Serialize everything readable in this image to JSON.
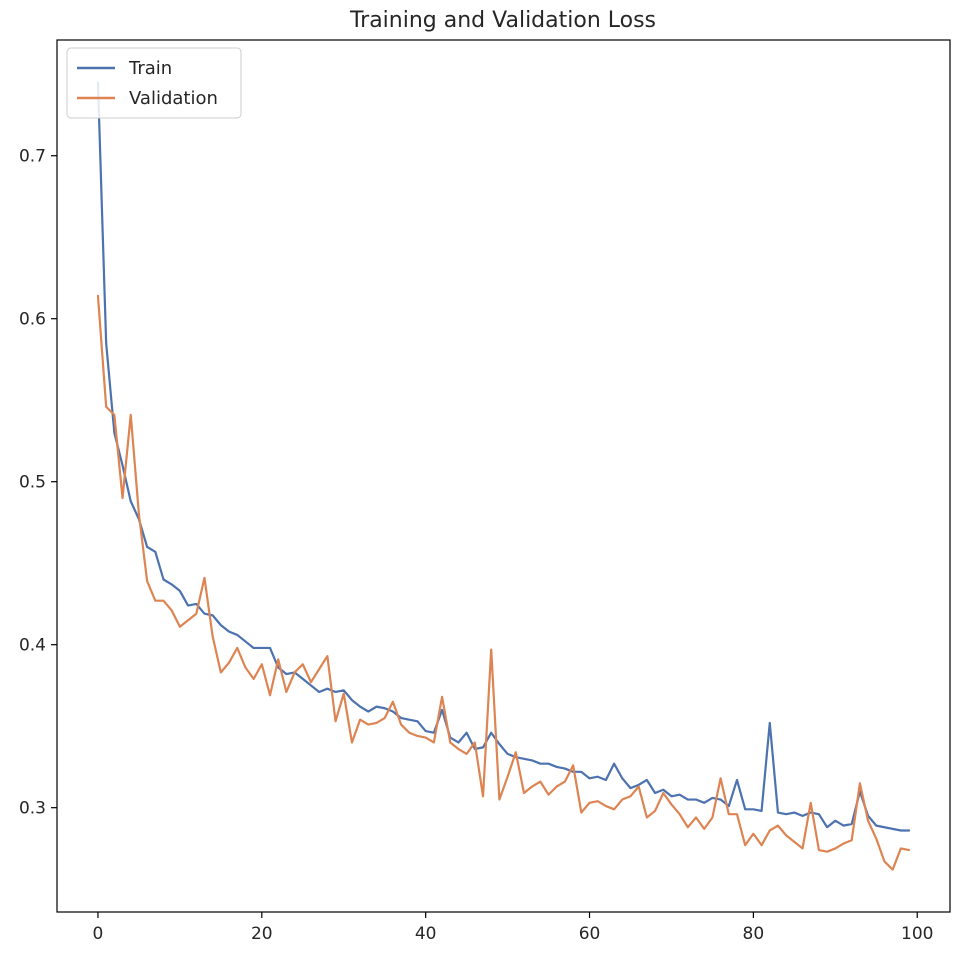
{
  "chart_data": {
    "type": "line",
    "title": "Training and Validation Loss",
    "xlabel": "",
    "ylabel": "",
    "xlim": [
      -5,
      104
    ],
    "ylim": [
      0.236,
      0.771
    ],
    "xticks": [
      0,
      20,
      40,
      60,
      80,
      100
    ],
    "yticks": [
      0.3,
      0.4,
      0.5,
      0.6,
      0.7
    ],
    "xtick_labels": [
      "0",
      "20",
      "40",
      "60",
      "80",
      "100"
    ],
    "ytick_labels": [
      "0.3",
      "0.4",
      "0.5",
      "0.6",
      "0.7"
    ],
    "grid": false,
    "legend_position": "top-left",
    "series": [
      {
        "name": "Train",
        "color": "#4c72b0",
        "x": [
          0,
          1,
          2,
          3,
          4,
          5,
          6,
          7,
          8,
          9,
          10,
          11,
          12,
          13,
          14,
          15,
          16,
          17,
          18,
          19,
          20,
          21,
          22,
          23,
          24,
          25,
          26,
          27,
          28,
          29,
          30,
          31,
          32,
          33,
          34,
          35,
          36,
          37,
          38,
          39,
          40,
          41,
          42,
          43,
          44,
          45,
          46,
          47,
          48,
          49,
          50,
          51,
          52,
          53,
          54,
          55,
          56,
          57,
          58,
          59,
          60,
          61,
          62,
          63,
          64,
          65,
          66,
          67,
          68,
          69,
          70,
          71,
          72,
          73,
          74,
          75,
          76,
          77,
          78,
          79,
          80,
          81,
          82,
          83,
          84,
          85,
          86,
          87,
          88,
          89,
          90,
          91,
          92,
          93,
          94,
          95,
          96,
          97,
          98,
          99
        ],
        "values": [
          0.745,
          0.585,
          0.53,
          0.51,
          0.488,
          0.477,
          0.46,
          0.457,
          0.44,
          0.437,
          0.433,
          0.424,
          0.425,
          0.419,
          0.418,
          0.412,
          0.408,
          0.406,
          0.402,
          0.398,
          0.398,
          0.398,
          0.386,
          0.382,
          0.383,
          0.379,
          0.375,
          0.371,
          0.373,
          0.371,
          0.372,
          0.366,
          0.362,
          0.359,
          0.362,
          0.361,
          0.359,
          0.355,
          0.354,
          0.353,
          0.347,
          0.346,
          0.36,
          0.343,
          0.34,
          0.346,
          0.336,
          0.337,
          0.346,
          0.339,
          0.333,
          0.331,
          0.33,
          0.329,
          0.327,
          0.327,
          0.325,
          0.324,
          0.322,
          0.322,
          0.318,
          0.319,
          0.317,
          0.327,
          0.318,
          0.312,
          0.314,
          0.317,
          0.309,
          0.311,
          0.307,
          0.308,
          0.305,
          0.305,
          0.303,
          0.306,
          0.305,
          0.301,
          0.317,
          0.299,
          0.299,
          0.298,
          0.352,
          0.297,
          0.296,
          0.297,
          0.295,
          0.297,
          0.296,
          0.288,
          0.292,
          0.289,
          0.29,
          0.31,
          0.295,
          0.289,
          0.288,
          0.287,
          0.286,
          0.286
        ]
      },
      {
        "name": "Validation",
        "color": "#dd8452",
        "x": [
          0,
          1,
          2,
          3,
          4,
          5,
          6,
          7,
          8,
          9,
          10,
          11,
          12,
          13,
          14,
          15,
          16,
          17,
          18,
          19,
          20,
          21,
          22,
          23,
          24,
          25,
          26,
          27,
          28,
          29,
          30,
          31,
          32,
          33,
          34,
          35,
          36,
          37,
          38,
          39,
          40,
          41,
          42,
          43,
          44,
          45,
          46,
          47,
          48,
          49,
          50,
          51,
          52,
          53,
          54,
          55,
          56,
          57,
          58,
          59,
          60,
          61,
          62,
          63,
          64,
          65,
          66,
          67,
          68,
          69,
          70,
          71,
          72,
          73,
          74,
          75,
          76,
          77,
          78,
          79,
          80,
          81,
          82,
          83,
          84,
          85,
          86,
          87,
          88,
          89,
          90,
          91,
          92,
          93,
          94,
          95,
          96,
          97,
          98,
          99
        ],
        "values": [
          0.614,
          0.546,
          0.541,
          0.49,
          0.541,
          0.48,
          0.439,
          0.427,
          0.427,
          0.421,
          0.411,
          0.415,
          0.419,
          0.441,
          0.405,
          0.383,
          0.389,
          0.398,
          0.386,
          0.379,
          0.388,
          0.369,
          0.391,
          0.371,
          0.383,
          0.388,
          0.377,
          0.385,
          0.393,
          0.353,
          0.37,
          0.34,
          0.354,
          0.351,
          0.352,
          0.355,
          0.365,
          0.351,
          0.346,
          0.344,
          0.343,
          0.34,
          0.368,
          0.34,
          0.336,
          0.333,
          0.34,
          0.307,
          0.397,
          0.305,
          0.319,
          0.334,
          0.309,
          0.313,
          0.316,
          0.308,
          0.313,
          0.316,
          0.326,
          0.297,
          0.303,
          0.304,
          0.301,
          0.299,
          0.305,
          0.307,
          0.313,
          0.294,
          0.298,
          0.309,
          0.302,
          0.296,
          0.288,
          0.294,
          0.287,
          0.294,
          0.318,
          0.296,
          0.296,
          0.277,
          0.284,
          0.277,
          0.286,
          0.289,
          0.283,
          0.279,
          0.275,
          0.303,
          0.274,
          0.273,
          0.275,
          0.278,
          0.28,
          0.315,
          0.292,
          0.281,
          0.267,
          0.262,
          0.275,
          0.274
        ]
      }
    ]
  }
}
